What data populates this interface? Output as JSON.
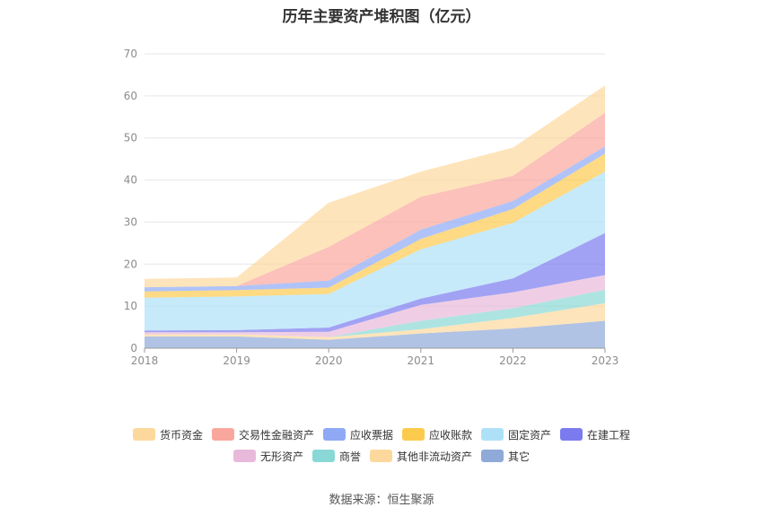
{
  "title": "历年主要资产堆积图（亿元）",
  "source": "数据来源：恒生聚源",
  "chart_data": {
    "type": "area",
    "stacked": true,
    "categories": [
      "2018",
      "2019",
      "2020",
      "2021",
      "2022",
      "2023"
    ],
    "ylim": [
      0,
      70
    ],
    "yticks": [
      0,
      10,
      20,
      30,
      40,
      50,
      60,
      70
    ],
    "grid": true,
    "legend_position": "bottom",
    "series": [
      {
        "name": "其它",
        "color": "#8fa9d9",
        "values": [
          2.8,
          2.8,
          2.0,
          3.5,
          4.7,
          6.5
        ]
      },
      {
        "name": "其他非流动资产",
        "color": "#fdd89d",
        "values": [
          0.5,
          0.5,
          0.6,
          1.0,
          2.5,
          4.2
        ]
      },
      {
        "name": "商誉",
        "color": "#8ad8d5",
        "values": [
          0.0,
          0.0,
          0.0,
          2.0,
          2.3,
          3.2
        ]
      },
      {
        "name": "无形资产",
        "color": "#e8b9da",
        "values": [
          0.5,
          0.5,
          1.3,
          3.8,
          3.8,
          3.5
        ]
      },
      {
        "name": "在建工程",
        "color": "#7b7bef",
        "values": [
          0.4,
          0.5,
          1.0,
          1.5,
          3.3,
          10.0
        ]
      },
      {
        "name": "固定资产",
        "color": "#aee1f8",
        "values": [
          7.8,
          8.0,
          8.0,
          11.7,
          13.2,
          14.6
        ]
      },
      {
        "name": "应收账款",
        "color": "#fccb4e",
        "values": [
          1.5,
          1.5,
          1.5,
          2.5,
          3.3,
          4.3
        ]
      },
      {
        "name": "应收票据",
        "color": "#8fa9f5",
        "values": [
          1.0,
          1.0,
          1.7,
          2.2,
          1.9,
          1.7
        ]
      },
      {
        "name": "交易性金融资产",
        "color": "#f9a79d",
        "values": [
          0.0,
          0.0,
          8.0,
          7.8,
          6.0,
          8.0
        ]
      },
      {
        "name": "货币资金",
        "color": "#fdd89d",
        "values": [
          2.0,
          2.0,
          10.5,
          6.0,
          6.7,
          6.5
        ]
      }
    ]
  },
  "legend": {
    "rows": [
      [
        "货币资金",
        "交易性金融资产",
        "应收票据",
        "应收账款",
        "固定资产",
        "在建工程"
      ],
      [
        "无形资产",
        "商誉",
        "其他非流动资产",
        "其它"
      ]
    ]
  }
}
